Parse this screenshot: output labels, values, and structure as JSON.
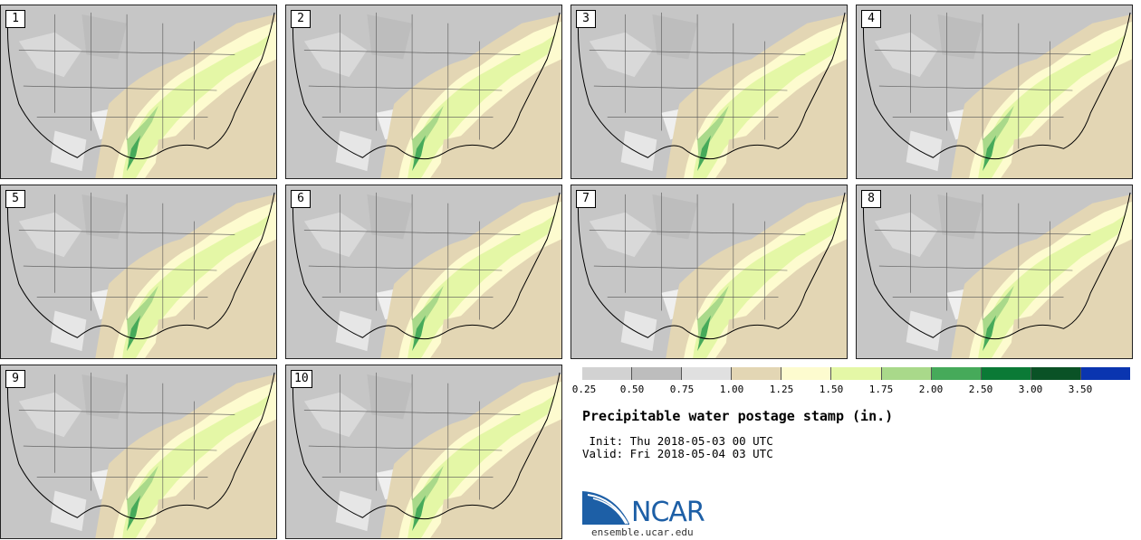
{
  "panels": [
    {
      "label": "1"
    },
    {
      "label": "2"
    },
    {
      "label": "3"
    },
    {
      "label": "4"
    },
    {
      "label": "5"
    },
    {
      "label": "6"
    },
    {
      "label": "7"
    },
    {
      "label": "8"
    },
    {
      "label": "9"
    },
    {
      "label": "10"
    }
  ],
  "colorbar": {
    "colors": [
      "#d2d2d2",
      "#bdbdbd",
      "#e0e0e0",
      "#e3d6b4",
      "#fdfbcf",
      "#e4f7a6",
      "#a9d98a",
      "#46aa5a",
      "#0b7a36",
      "#0a5226",
      "#0a35b0"
    ],
    "ticks": [
      "0.25",
      "0.50",
      "0.75",
      "1.00",
      "1.25",
      "1.50",
      "1.75",
      "2.00",
      "2.50",
      "3.00",
      "3.50"
    ]
  },
  "title": "Precipitable water postage stamp (in.)",
  "init": " Init: Thu 2018-05-03 00 UTC",
  "valid": "Valid: Fri 2018-05-04 03 UTC",
  "logo": {
    "text": "NCAR",
    "url": "ensemble.ucar.edu"
  }
}
